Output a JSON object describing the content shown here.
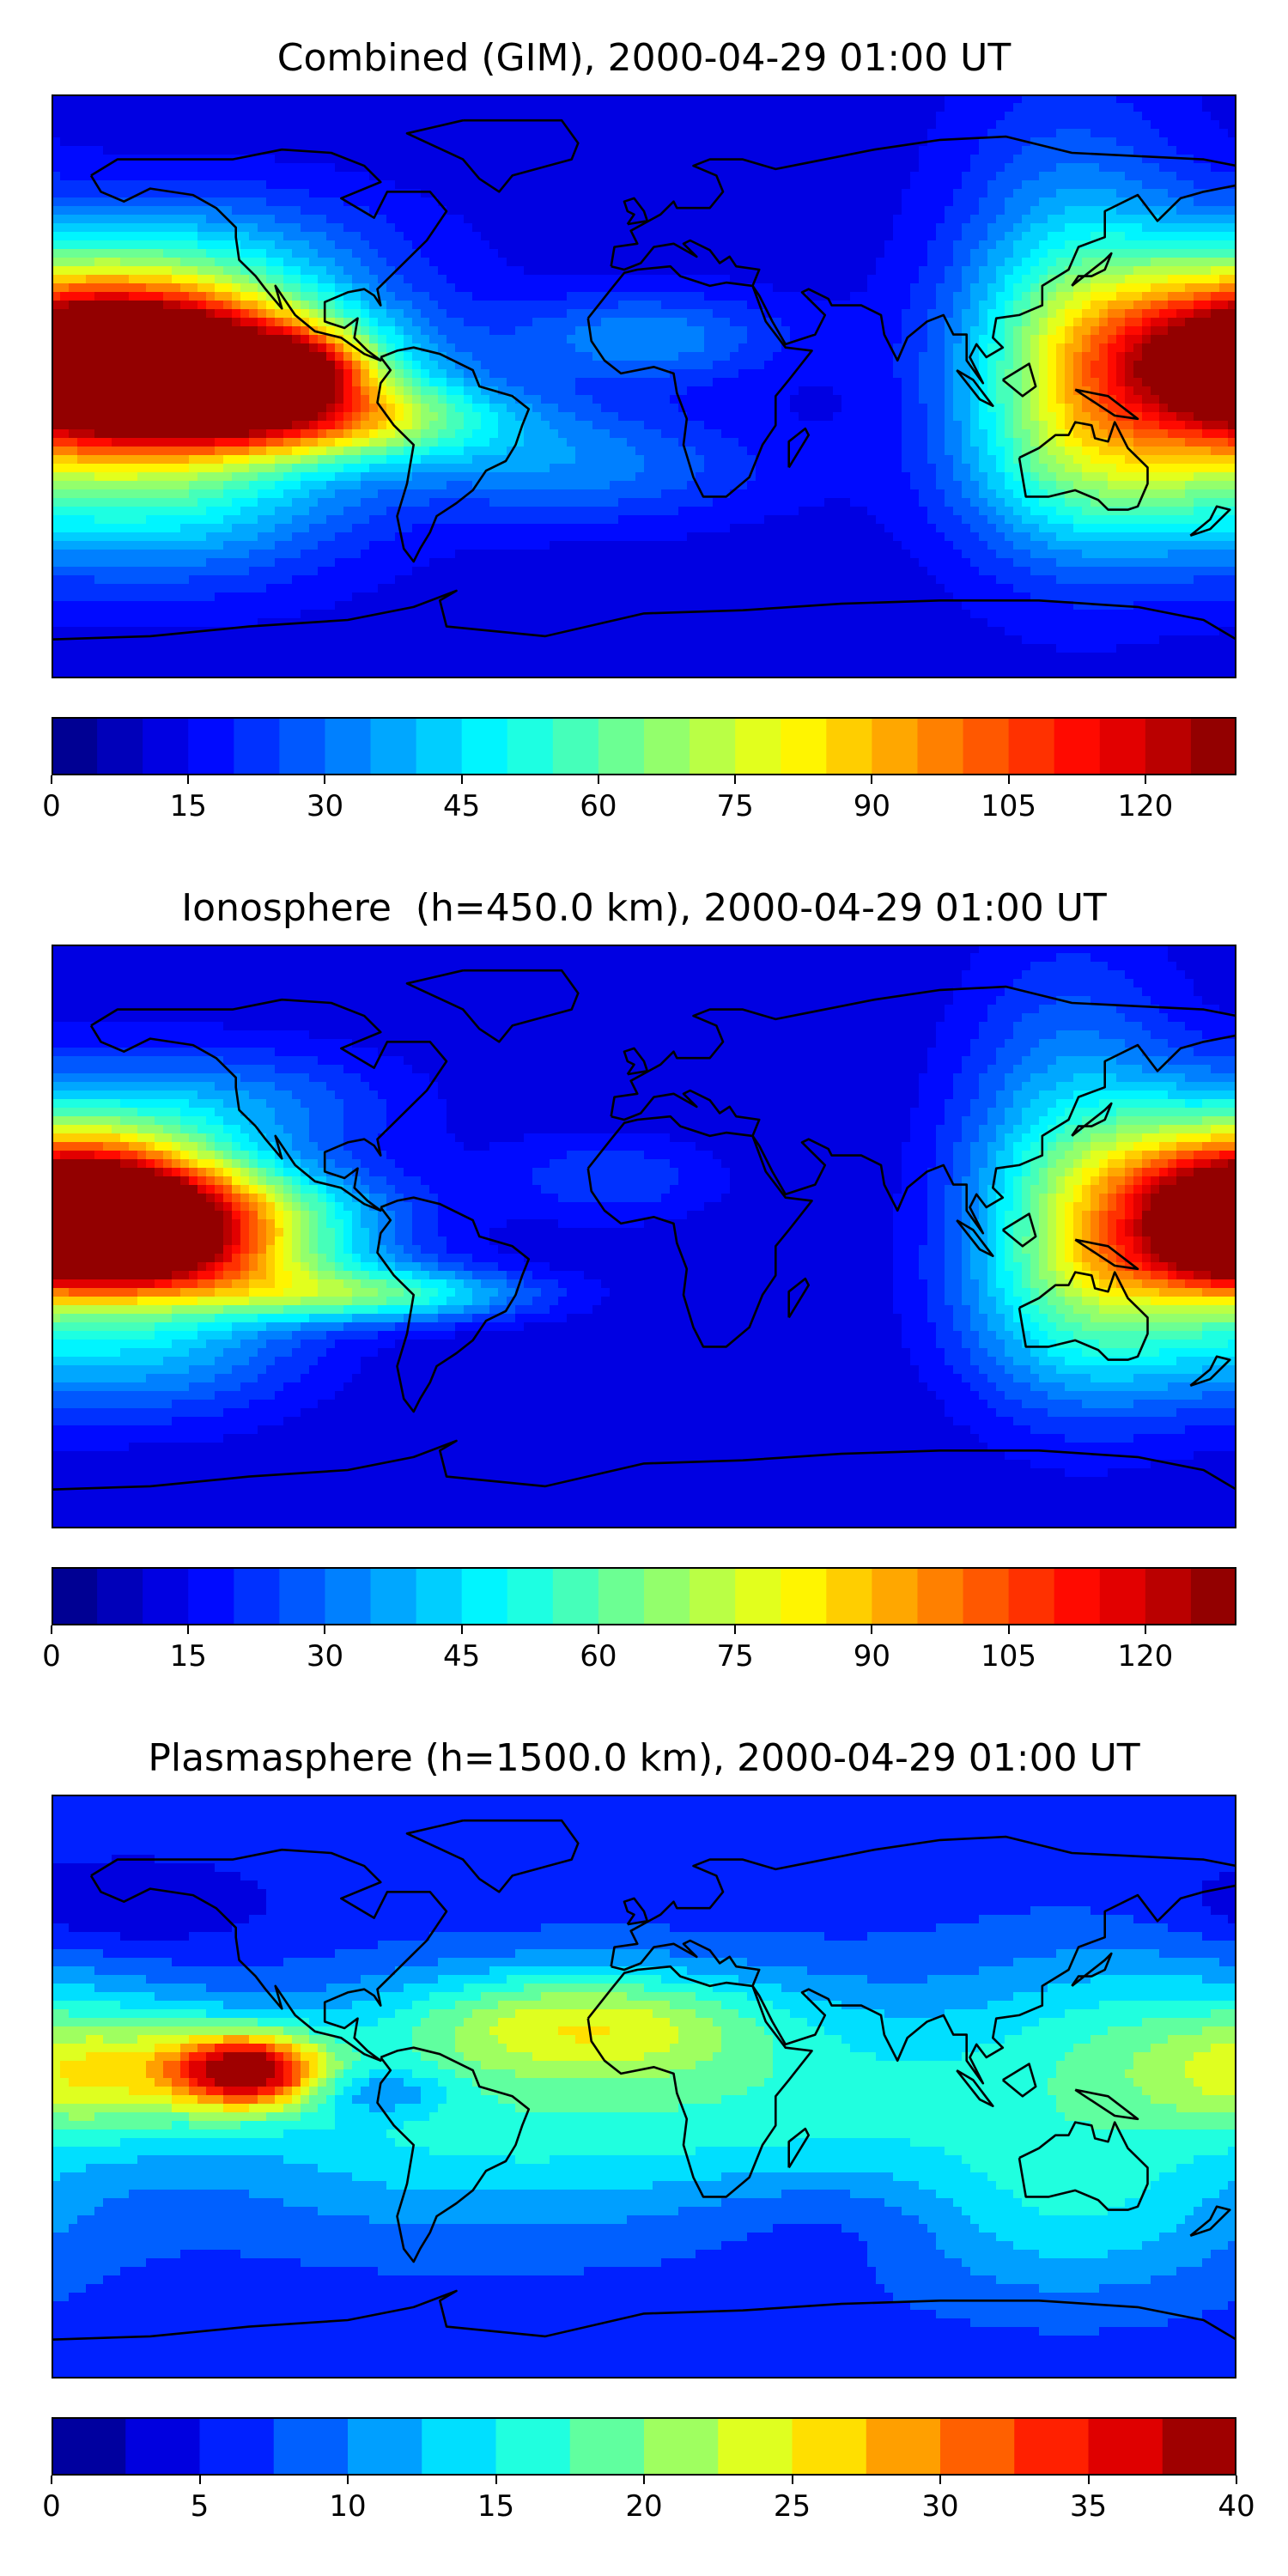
{
  "figure": {
    "panels": [
      {
        "id": "combined",
        "title": "Combined (GIM), 2000-04-29 01:00 UT",
        "colorbar": {
          "min": 0,
          "max": 130,
          "step": 5,
          "ticks": [
            0,
            15,
            30,
            45,
            60,
            75,
            90,
            105,
            120
          ],
          "tick_labels": [
            "0",
            "15",
            "30",
            "45",
            "60",
            "75",
            "90",
            "105",
            "120"
          ]
        }
      },
      {
        "id": "ionosphere",
        "title": "Ionosphere  (h=450.0 km), 2000-04-29 01:00 UT",
        "colorbar": {
          "min": 0,
          "max": 130,
          "step": 5,
          "ticks": [
            0,
            15,
            30,
            45,
            60,
            75,
            90,
            105,
            120
          ],
          "tick_labels": [
            "0",
            "15",
            "30",
            "45",
            "60",
            "75",
            "90",
            "105",
            "120"
          ]
        }
      },
      {
        "id": "plasmasphere",
        "title": "Plasmasphere (h=1500.0 km), 2000-04-29 01:00 UT",
        "colorbar": {
          "min": 0,
          "max": 40,
          "step": 2.5,
          "ticks": [
            0,
            5,
            10,
            15,
            20,
            25,
            30,
            35,
            40
          ],
          "tick_labels": [
            "0",
            "5",
            "10",
            "15",
            "20",
            "25",
            "30",
            "35",
            "40"
          ]
        }
      }
    ]
  },
  "chart_data": [
    {
      "type": "heatmap",
      "title": "Combined (GIM), 2000-04-29 01:00 UT",
      "xlabel": "",
      "ylabel": "",
      "xlim": [
        -180,
        180
      ],
      "ylim": [
        -90,
        90
      ],
      "colormap": "jet",
      "levels": {
        "min": 0,
        "max": 130,
        "step": 5
      },
      "colorbar_ticks": [
        0,
        15,
        30,
        45,
        60,
        75,
        90,
        105,
        120
      ],
      "background_value": 12,
      "features": [
        {
          "lon": -125,
          "lat": 7,
          "amp": 80,
          "sx": 35,
          "sy": 14
        },
        {
          "lon": -103,
          "lat": 6,
          "amp": 38,
          "sx": 12,
          "sy": 7
        },
        {
          "lon": -160,
          "lat": 8,
          "amp": 68,
          "sx": 32,
          "sy": 16
        },
        {
          "lon": -100,
          "lat": -10,
          "amp": 55,
          "sx": 40,
          "sy": 9
        },
        {
          "lon": -145,
          "lat": -30,
          "amp": 38,
          "sx": 40,
          "sy": 20
        },
        {
          "lon": -130,
          "lat": 40,
          "amp": 22,
          "sx": 40,
          "sy": 15
        },
        {
          "lon": 175,
          "lat": 10,
          "amp": 72,
          "sx": 40,
          "sy": 22
        },
        {
          "lon": 130,
          "lat": 20,
          "amp": 30,
          "sx": 25,
          "sy": 45
        },
        {
          "lon": 140,
          "lat": -25,
          "amp": 28,
          "sx": 30,
          "sy": 20
        },
        {
          "lon": 0,
          "lat": 15,
          "amp": 22,
          "sx": 30,
          "sy": 10
        },
        {
          "lon": -20,
          "lat": -25,
          "amp": 20,
          "sx": 40,
          "sy": 12
        }
      ]
    },
    {
      "type": "heatmap",
      "title": "Ionosphere  (h=450.0 km), 2000-04-29 01:00 UT",
      "xlabel": "",
      "ylabel": "",
      "xlim": [
        -180,
        180
      ],
      "ylim": [
        -90,
        90
      ],
      "colormap": "jet",
      "levels": {
        "min": 0,
        "max": 130,
        "step": 5
      },
      "colorbar_ticks": [
        0,
        15,
        30,
        45,
        60,
        75,
        90,
        105,
        120
      ],
      "background_value": 10,
      "features": [
        {
          "lon": -165,
          "lat": 10,
          "amp": 78,
          "sx": 28,
          "sy": 14
        },
        {
          "lon": -130,
          "lat": 7,
          "amp": 52,
          "sx": 35,
          "sy": 10
        },
        {
          "lon": -150,
          "lat": -8,
          "amp": 52,
          "sx": 40,
          "sy": 8
        },
        {
          "lon": -85,
          "lat": -18,
          "amp": 45,
          "sx": 35,
          "sy": 6
        },
        {
          "lon": -150,
          "lat": -30,
          "amp": 30,
          "sx": 35,
          "sy": 18
        },
        {
          "lon": -130,
          "lat": 40,
          "amp": 22,
          "sx": 40,
          "sy": 14
        },
        {
          "lon": 175,
          "lat": 10,
          "amp": 70,
          "sx": 35,
          "sy": 20
        },
        {
          "lon": 130,
          "lat": 20,
          "amp": 30,
          "sx": 25,
          "sy": 45
        },
        {
          "lon": 140,
          "lat": -25,
          "amp": 25,
          "sx": 30,
          "sy": 20
        },
        {
          "lon": -10,
          "lat": 18,
          "amp": 14,
          "sx": 25,
          "sy": 10
        }
      ]
    },
    {
      "type": "heatmap",
      "title": "Plasmasphere (h=1500.0 km), 2000-04-29 01:00 UT",
      "xlabel": "",
      "ylabel": "",
      "xlim": [
        -180,
        180
      ],
      "ylim": [
        -90,
        90
      ],
      "colormap": "jet",
      "levels": {
        "min": 0,
        "max": 40,
        "step": 2.5
      },
      "colorbar_ticks": [
        0,
        5,
        10,
        15,
        20,
        25,
        30,
        35,
        40
      ],
      "background_value": 6,
      "features": [
        {
          "lon": -120,
          "lat": 5,
          "amp": 26,
          "sx": 16,
          "sy": 8
        },
        {
          "lon": -160,
          "lat": 5,
          "amp": 13,
          "sx": 30,
          "sy": 14
        },
        {
          "lon": -70,
          "lat": -10,
          "amp": 8,
          "sx": 55,
          "sy": 25
        },
        {
          "lon": -80,
          "lat": -2,
          "amp": -6,
          "sx": 14,
          "sy": 5
        },
        {
          "lon": -20,
          "lat": 20,
          "amp": 13,
          "sx": 40,
          "sy": 12
        },
        {
          "lon": 40,
          "lat": -5,
          "amp": 9,
          "sx": 60,
          "sy": 25
        },
        {
          "lon": 150,
          "lat": 10,
          "amp": 9,
          "sx": 40,
          "sy": 25
        },
        {
          "lon": 130,
          "lat": -40,
          "amp": 7,
          "sx": 40,
          "sy": 20
        },
        {
          "lon": 60,
          "lat": -40,
          "amp": -3,
          "sx": 30,
          "sy": 12
        },
        {
          "lon": -160,
          "lat": 55,
          "amp": -4,
          "sx": 30,
          "sy": 10
        }
      ]
    }
  ]
}
